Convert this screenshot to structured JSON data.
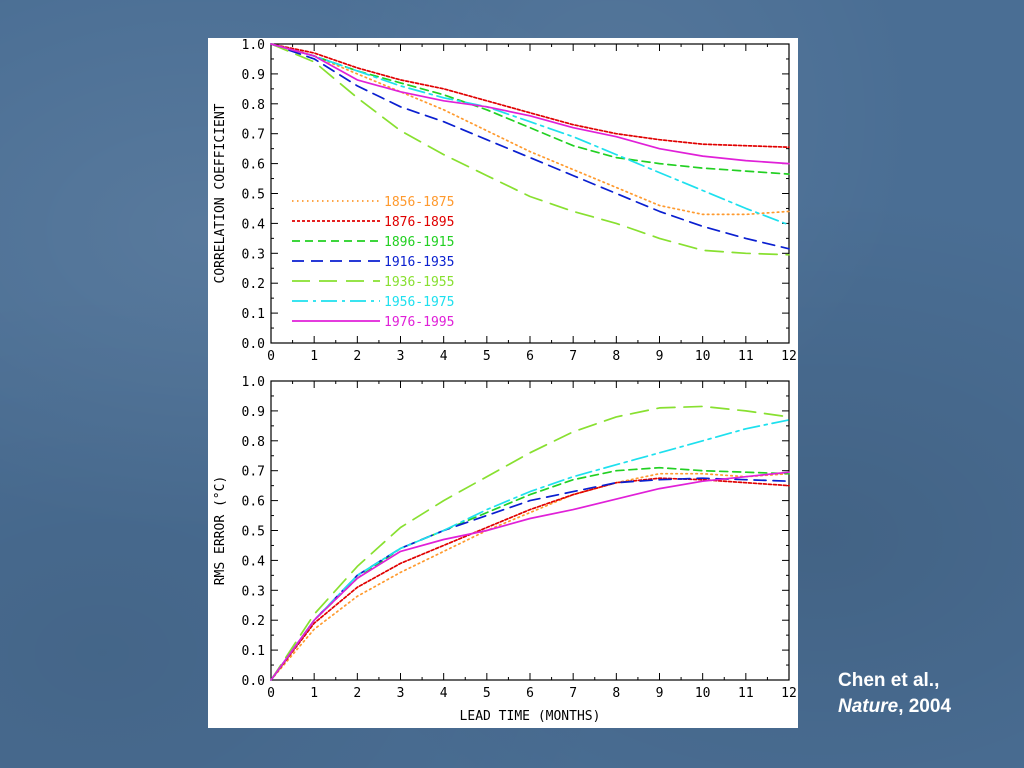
{
  "citation": {
    "authors": "Chen et al.,",
    "journal": "Nature",
    "year": ", 2004"
  },
  "chart_data": [
    {
      "type": "line",
      "ylabel": "CORRELATION COEFFICIENT",
      "xlabel": "",
      "xlim": [
        0,
        12
      ],
      "ylim": [
        0,
        1
      ],
      "xticks": [
        "0",
        "1",
        "2",
        "3",
        "4",
        "5",
        "6",
        "7",
        "8",
        "9",
        "10",
        "11",
        "12"
      ],
      "yticks": [
        "0.0",
        "0.1",
        "0.2",
        "0.3",
        "0.4",
        "0.5",
        "0.6",
        "0.7",
        "0.8",
        "0.9",
        "1.0"
      ],
      "legend_position": "center-left",
      "x": [
        0,
        1,
        2,
        3,
        4,
        5,
        6,
        7,
        8,
        9,
        10,
        11,
        12
      ],
      "series": [
        {
          "name": "1856-1875",
          "color": "#ff9a2e",
          "dash": "dotted",
          "values": [
            1.0,
            0.96,
            0.9,
            0.84,
            0.78,
            0.71,
            0.64,
            0.58,
            0.52,
            0.46,
            0.43,
            0.43,
            0.44
          ]
        },
        {
          "name": "1876-1895",
          "color": "#e00000",
          "dash": "short",
          "values": [
            1.0,
            0.97,
            0.92,
            0.88,
            0.85,
            0.81,
            0.77,
            0.73,
            0.7,
            0.68,
            0.665,
            0.66,
            0.655
          ]
        },
        {
          "name": "1896-1915",
          "color": "#22d022",
          "dash": "medium",
          "values": [
            1.0,
            0.96,
            0.91,
            0.87,
            0.83,
            0.78,
            0.72,
            0.66,
            0.62,
            0.6,
            0.585,
            0.575,
            0.565
          ]
        },
        {
          "name": "1916-1935",
          "color": "#0a1fd0",
          "dash": "long",
          "values": [
            1.0,
            0.95,
            0.86,
            0.79,
            0.74,
            0.68,
            0.62,
            0.56,
            0.5,
            0.44,
            0.39,
            0.35,
            0.315
          ]
        },
        {
          "name": "1936-1955",
          "color": "#88e030",
          "dash": "longer",
          "values": [
            1.0,
            0.94,
            0.82,
            0.71,
            0.63,
            0.56,
            0.49,
            0.44,
            0.4,
            0.35,
            0.31,
            0.3,
            0.295
          ]
        },
        {
          "name": "1956-1975",
          "color": "#1ee0ee",
          "dash": "dashdot",
          "values": [
            1.0,
            0.96,
            0.91,
            0.86,
            0.82,
            0.79,
            0.74,
            0.69,
            0.63,
            0.57,
            0.51,
            0.45,
            0.395
          ]
        },
        {
          "name": "1976-1995",
          "color": "#e020d8",
          "dash": "solid",
          "values": [
            1.0,
            0.96,
            0.88,
            0.84,
            0.81,
            0.79,
            0.76,
            0.72,
            0.69,
            0.65,
            0.625,
            0.61,
            0.6
          ]
        }
      ]
    },
    {
      "type": "line",
      "ylabel": "RMS ERROR (°C)",
      "xlabel": "LEAD TIME (MONTHS)",
      "xlim": [
        0,
        12
      ],
      "ylim": [
        0,
        1
      ],
      "xticks": [
        "0",
        "1",
        "2",
        "3",
        "4",
        "5",
        "6",
        "7",
        "8",
        "9",
        "10",
        "11",
        "12"
      ],
      "yticks": [
        "0.0",
        "0.1",
        "0.2",
        "0.3",
        "0.4",
        "0.5",
        "0.6",
        "0.7",
        "0.8",
        "0.9",
        "1.0"
      ],
      "x": [
        0,
        1,
        2,
        3,
        4,
        5,
        6,
        7,
        8,
        9,
        10,
        11,
        12
      ],
      "series": [
        {
          "name": "1856-1875",
          "color": "#ff9a2e",
          "dash": "dotted",
          "values": [
            0.0,
            0.17,
            0.28,
            0.36,
            0.43,
            0.5,
            0.56,
            0.62,
            0.66,
            0.69,
            0.69,
            0.68,
            0.69
          ]
        },
        {
          "name": "1876-1895",
          "color": "#e00000",
          "dash": "short",
          "values": [
            0.0,
            0.19,
            0.31,
            0.39,
            0.45,
            0.51,
            0.57,
            0.62,
            0.66,
            0.675,
            0.67,
            0.66,
            0.65
          ]
        },
        {
          "name": "1896-1915",
          "color": "#22d022",
          "dash": "medium",
          "values": [
            0.0,
            0.2,
            0.34,
            0.44,
            0.5,
            0.56,
            0.62,
            0.67,
            0.7,
            0.71,
            0.7,
            0.695,
            0.69
          ]
        },
        {
          "name": "1916-1935",
          "color": "#0a1fd0",
          "dash": "long",
          "values": [
            0.0,
            0.2,
            0.35,
            0.44,
            0.5,
            0.55,
            0.6,
            0.63,
            0.66,
            0.67,
            0.675,
            0.67,
            0.665
          ]
        },
        {
          "name": "1936-1955",
          "color": "#88e030",
          "dash": "longer",
          "values": [
            0.0,
            0.22,
            0.38,
            0.51,
            0.6,
            0.68,
            0.76,
            0.83,
            0.88,
            0.91,
            0.915,
            0.9,
            0.88
          ]
        },
        {
          "name": "1956-1975",
          "color": "#1ee0ee",
          "dash": "dashdot",
          "values": [
            0.0,
            0.2,
            0.35,
            0.44,
            0.5,
            0.57,
            0.63,
            0.68,
            0.72,
            0.76,
            0.8,
            0.84,
            0.87
          ]
        },
        {
          "name": "1976-1995",
          "color": "#e020d8",
          "dash": "solid",
          "values": [
            0.0,
            0.2,
            0.34,
            0.43,
            0.47,
            0.5,
            0.54,
            0.57,
            0.605,
            0.64,
            0.665,
            0.68,
            0.695
          ]
        }
      ]
    }
  ]
}
